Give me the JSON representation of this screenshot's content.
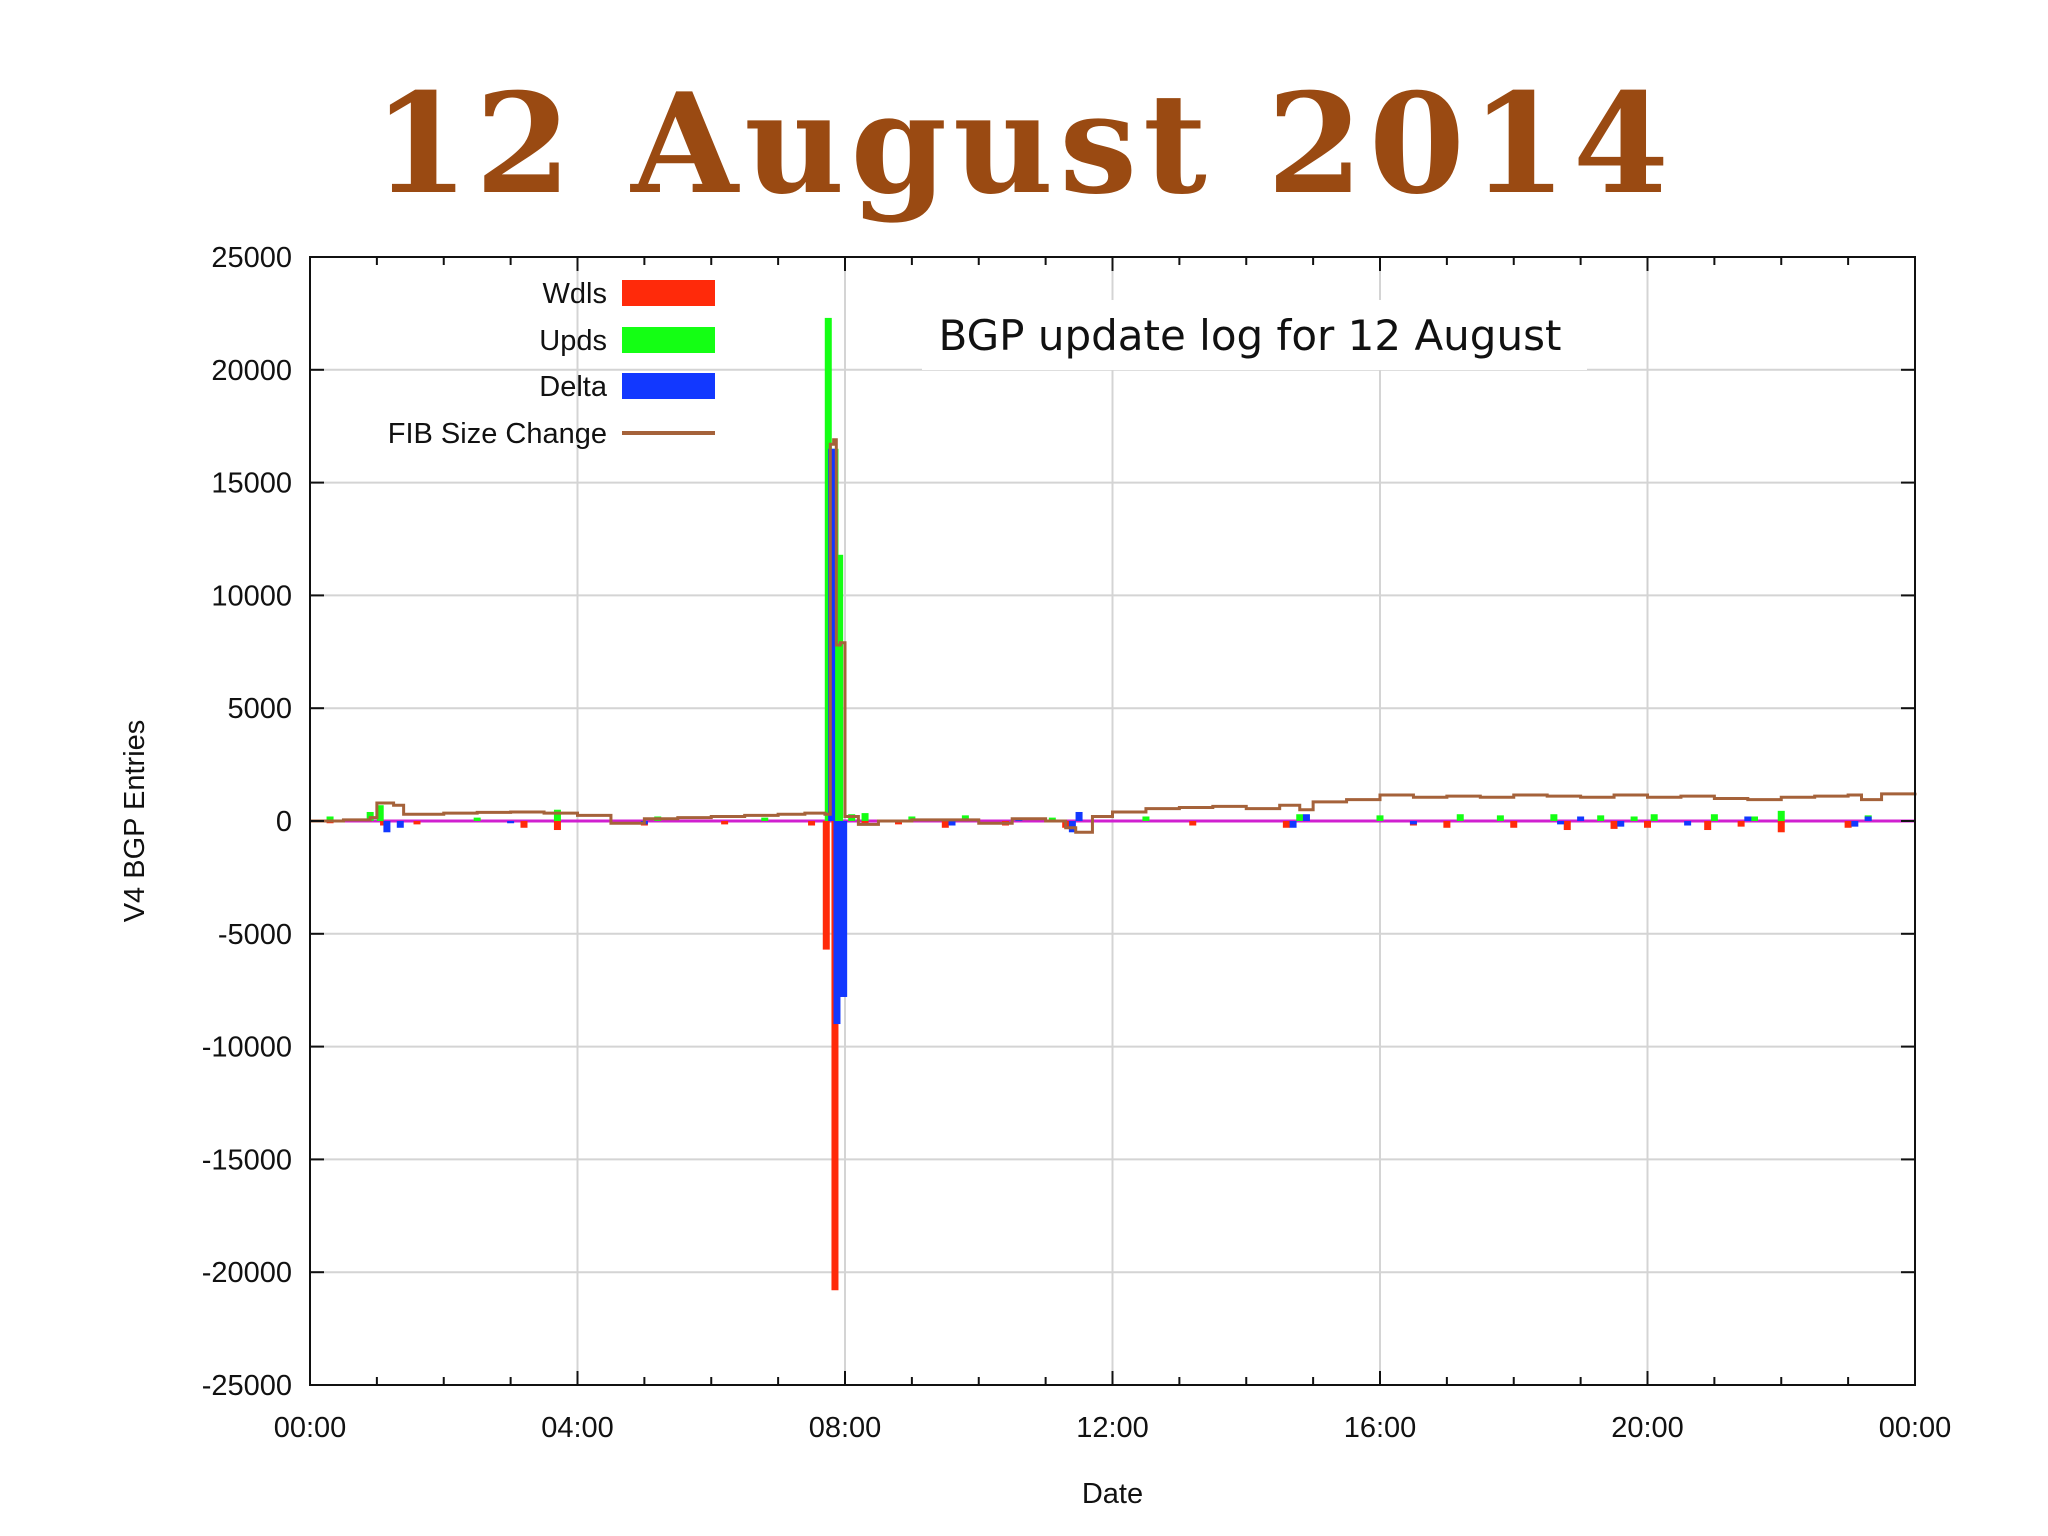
{
  "slide": {
    "title": "12 August 2014"
  },
  "chart_data": {
    "type": "bar",
    "xlabel": "Date",
    "ylabel": "V4 BGP Entries",
    "annotation": "BGP update log for 12 August",
    "xlim": [
      0,
      24
    ],
    "ylim": [
      -25000,
      25000
    ],
    "x_ticks": [
      {
        "value": 0,
        "label": "00:00"
      },
      {
        "value": 4,
        "label": "04:00"
      },
      {
        "value": 8,
        "label": "08:00"
      },
      {
        "value": 12,
        "label": "12:00"
      },
      {
        "value": 16,
        "label": "16:00"
      },
      {
        "value": 20,
        "label": "20:00"
      },
      {
        "value": 24,
        "label": "00:00"
      }
    ],
    "y_ticks": [
      {
        "value": 25000,
        "label": "25000"
      },
      {
        "value": 20000,
        "label": "20000"
      },
      {
        "value": 15000,
        "label": "15000"
      },
      {
        "value": 10000,
        "label": "10000"
      },
      {
        "value": 5000,
        "label": "5000"
      },
      {
        "value": 0,
        "label": "0"
      },
      {
        "value": -5000,
        "label": "-5000"
      },
      {
        "value": -10000,
        "label": "-10000"
      },
      {
        "value": -15000,
        "label": "-15000"
      },
      {
        "value": -20000,
        "label": "-20000"
      },
      {
        "value": -25000,
        "label": "-25000"
      }
    ],
    "grid": true,
    "legend_position": "top-left",
    "series": [
      {
        "name": "Wdls",
        "kind": "bar",
        "color": "#ff2a0a",
        "x": [
          0.3,
          1.1,
          1.6,
          3.2,
          3.7,
          5.0,
          6.2,
          7.5,
          7.72,
          7.85,
          7.95,
          8.3,
          8.8,
          9.5,
          10.4,
          11.3,
          13.2,
          14.6,
          16.5,
          17.0,
          18.0,
          18.8,
          19.5,
          20.0,
          20.9,
          21.4,
          22.0,
          23.0
        ],
        "y": [
          -100,
          -200,
          -150,
          -300,
          -400,
          -200,
          -150,
          -200,
          -5700,
          -20800,
          -7800,
          -200,
          -150,
          -300,
          -200,
          -300,
          -200,
          -300,
          -200,
          -300,
          -300,
          -400,
          -350,
          -300,
          -400,
          -250,
          -500,
          -300
        ]
      },
      {
        "name": "Upds",
        "kind": "bar",
        "color": "#14ff14",
        "x": [
          0.3,
          0.9,
          1.05,
          2.5,
          3.7,
          5.2,
          6.8,
          7.75,
          7.85,
          7.92,
          8.1,
          8.3,
          9.0,
          9.8,
          11.1,
          12.5,
          14.8,
          16.0,
          17.2,
          17.8,
          18.6,
          19.3,
          19.8,
          20.1,
          21.0,
          21.6,
          22.0,
          23.3
        ],
        "y": [
          200,
          400,
          700,
          150,
          500,
          200,
          150,
          22300,
          16500,
          11800,
          300,
          350,
          200,
          250,
          150,
          200,
          300,
          250,
          300,
          250,
          300,
          250,
          200,
          300,
          300,
          200,
          450,
          250
        ]
      },
      {
        "name": "Delta",
        "kind": "bar",
        "color": "#1238ff",
        "x": [
          1.15,
          1.35,
          3.0,
          5.0,
          7.8,
          7.88,
          7.98,
          9.6,
          10.6,
          11.4,
          11.5,
          14.7,
          14.9,
          16.5,
          18.7,
          19.0,
          19.6,
          20.6,
          21.5,
          23.1,
          23.3
        ],
        "y": [
          -500,
          -300,
          -100,
          -150,
          16500,
          -9000,
          -7800,
          -200,
          150,
          -500,
          400,
          -300,
          300,
          -150,
          -150,
          200,
          -250,
          -200,
          200,
          -250,
          200
        ]
      },
      {
        "name": "FIB Size Change",
        "kind": "line",
        "color": "#a5623a",
        "x": [
          0,
          0.5,
          0.9,
          1.0,
          1.25,
          1.4,
          2.0,
          2.5,
          3.0,
          3.5,
          4.0,
          4.5,
          5.0,
          5.5,
          6.0,
          6.5,
          7.0,
          7.4,
          7.7,
          7.78,
          7.83,
          7.87,
          7.93,
          8.0,
          8.2,
          8.5,
          9.0,
          9.5,
          10.0,
          10.5,
          11.0,
          11.3,
          11.45,
          11.7,
          12.0,
          12.5,
          13.0,
          13.5,
          14.0,
          14.5,
          14.8,
          15.0,
          15.5,
          16.0,
          16.5,
          17.0,
          17.5,
          18.0,
          18.5,
          19.0,
          19.5,
          20.0,
          20.5,
          21.0,
          21.5,
          22.0,
          22.5,
          23.0,
          23.2,
          23.5,
          24.0
        ],
        "y": [
          0,
          50,
          150,
          800,
          700,
          300,
          350,
          380,
          400,
          350,
          250,
          -100,
          100,
          150,
          200,
          250,
          300,
          350,
          300,
          16700,
          16900,
          7800,
          7900,
          200,
          -150,
          0,
          50,
          50,
          -100,
          100,
          0,
          -300,
          -500,
          200,
          400,
          550,
          600,
          650,
          550,
          700,
          500,
          850,
          950,
          1150,
          1050,
          1100,
          1050,
          1150,
          1100,
          1050,
          1150,
          1050,
          1100,
          1000,
          950,
          1050,
          1100,
          1150,
          950,
          1200,
          1250
        ]
      }
    ]
  }
}
